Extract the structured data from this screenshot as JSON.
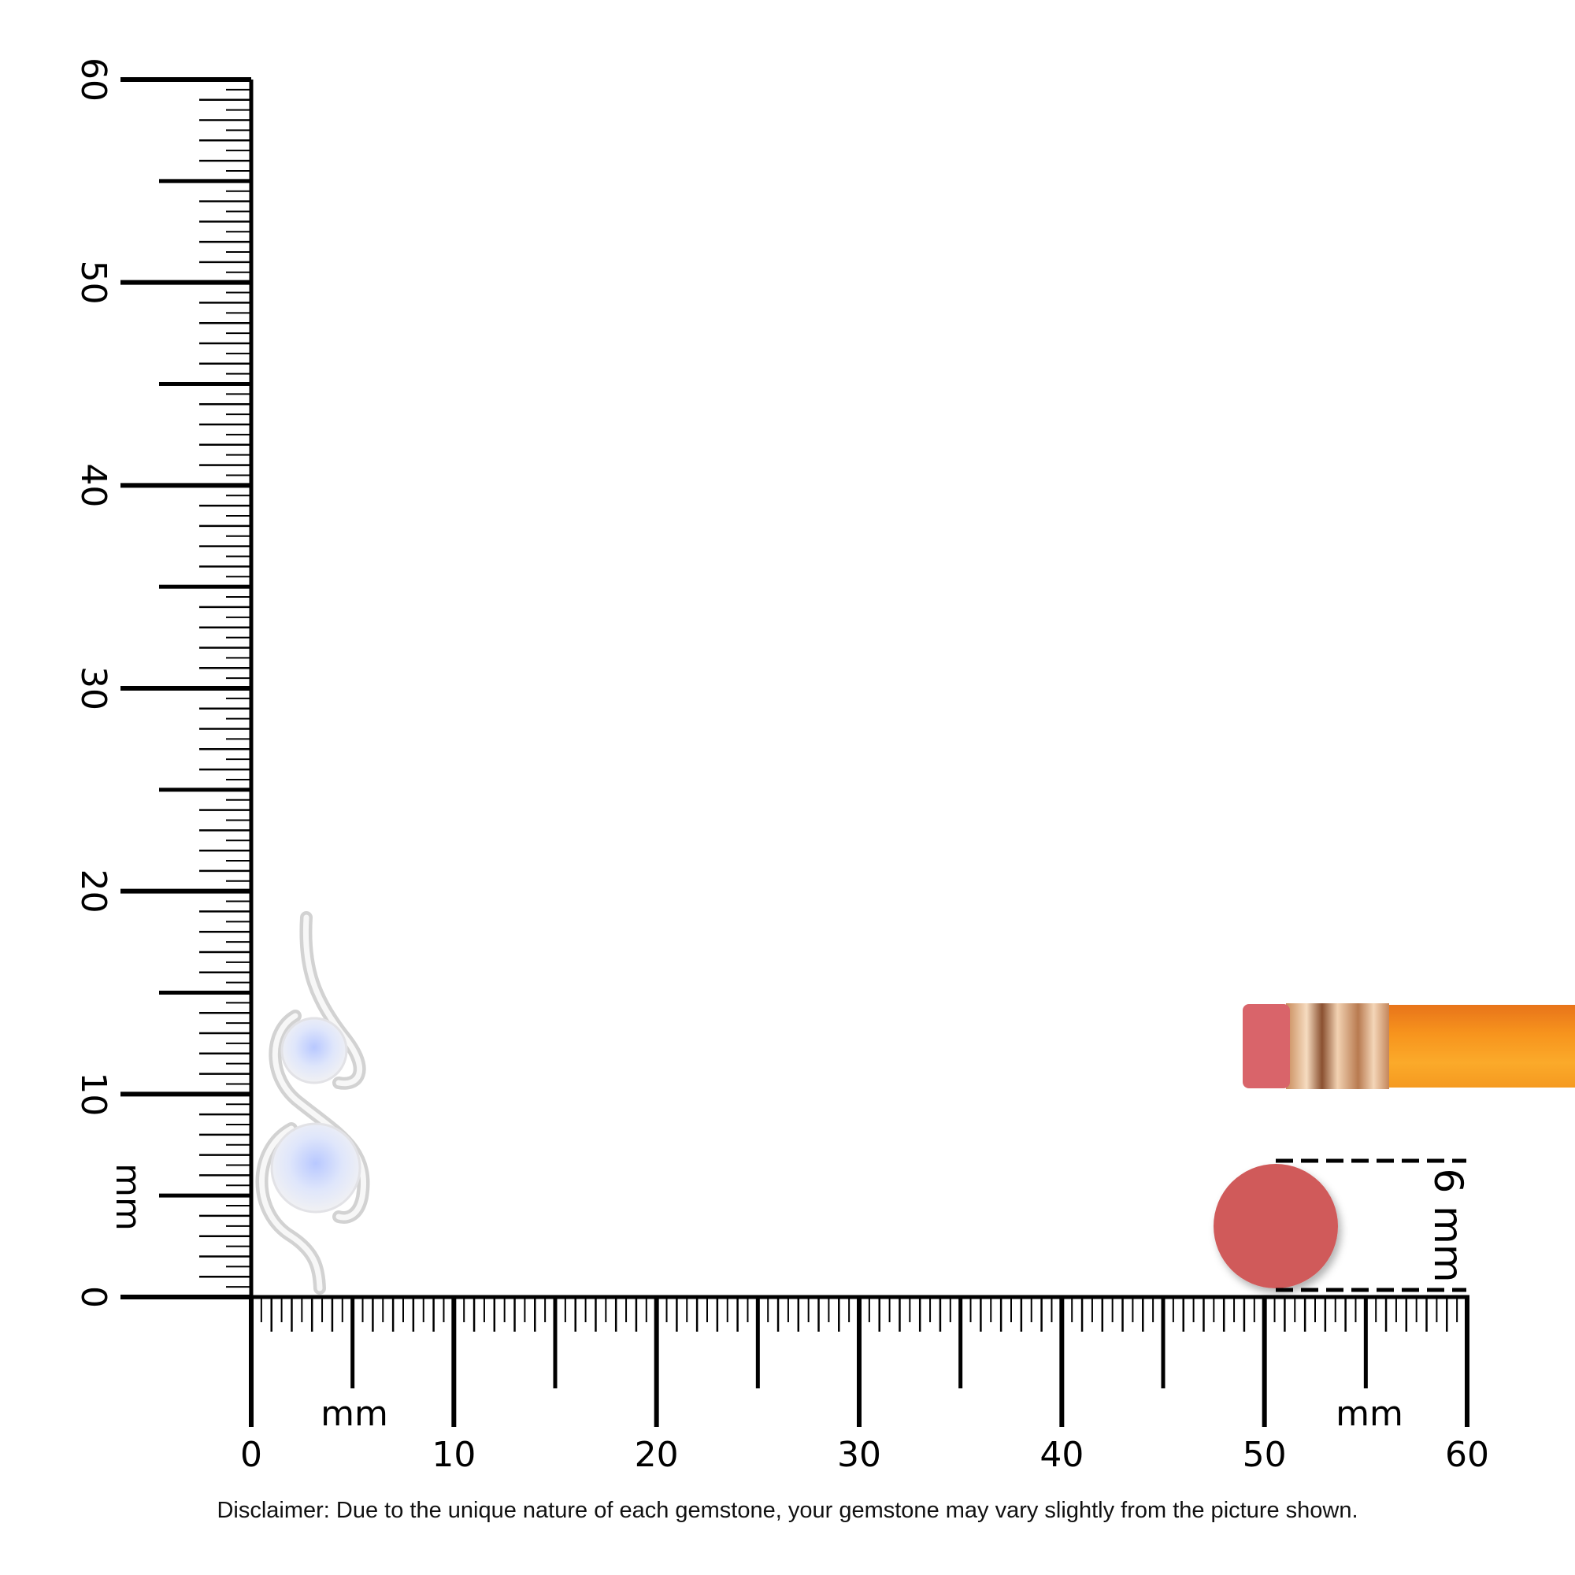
{
  "rulers": {
    "horizontal": {
      "min": 0,
      "max": 60,
      "unit": "mm",
      "labels": [
        "0",
        "10",
        "20",
        "30",
        "40",
        "50",
        "60"
      ]
    },
    "vertical": {
      "min": 0,
      "max": 60,
      "unit": "mm",
      "labels": [
        "0",
        "10",
        "20",
        "30",
        "40",
        "50",
        "60"
      ]
    }
  },
  "reference": {
    "object": "pencil eraser",
    "size_label": "6 mm",
    "size_mm": 6,
    "eraser_color": "#d05a5a",
    "pencil_color": "#f7941d"
  },
  "product": {
    "type": "pendant",
    "stones": 2,
    "metal_color": "#e6e6e6",
    "stone_color": "#c9d6fb"
  },
  "disclaimer": "Disclaimer: Due to the unique nature of each gemstone, your gemstone may vary slightly from the picture shown."
}
